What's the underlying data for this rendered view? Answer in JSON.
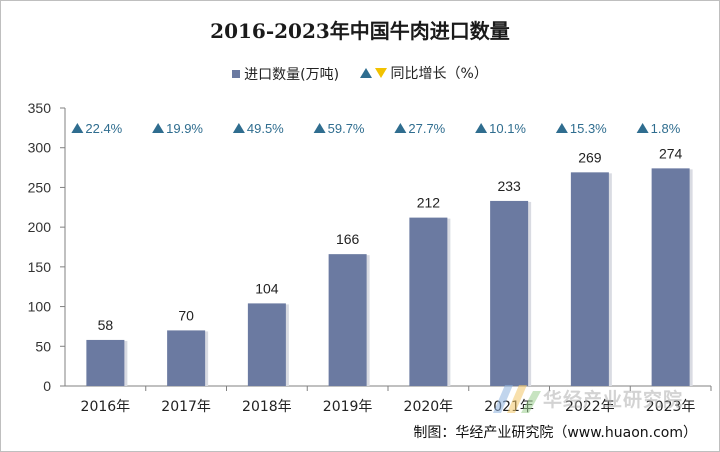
{
  "title": "2016-2023年中国牛肉进口数量",
  "legend": {
    "bar_label": "进口数量(万吨)",
    "growth_label": "同比增长（%）",
    "bar_color": "#6b7aa1",
    "up_color": "#2f6d8f",
    "down_color": "#f2c200"
  },
  "chart_data": {
    "type": "bar",
    "title": "2016-2023年中国牛肉进口数量",
    "categories": [
      "2016年",
      "2017年",
      "2018年",
      "2019年",
      "2020年",
      "2021年",
      "2022年",
      "2023年"
    ],
    "series": [
      {
        "name": "进口数量(万吨)",
        "values": [
          58,
          70,
          104,
          166,
          212,
          233,
          269,
          274
        ]
      }
    ],
    "growth": {
      "name": "同比增长（%）",
      "values": [
        22.4,
        19.9,
        49.5,
        59.7,
        27.7,
        10.1,
        15.3,
        1.8
      ],
      "labels": [
        "22.4%",
        "19.9%",
        "49.5%",
        "59.7%",
        "27.7%",
        "10.1%",
        "15.3%",
        "1.8%"
      ]
    },
    "ylim": [
      0,
      350
    ],
    "yticks": [
      0,
      50,
      100,
      150,
      200,
      250,
      300,
      350
    ],
    "xlabel": "",
    "ylabel": ""
  },
  "watermark": "华经产业研究院",
  "source": "制图：华经产业研究院（www.huaon.com）"
}
